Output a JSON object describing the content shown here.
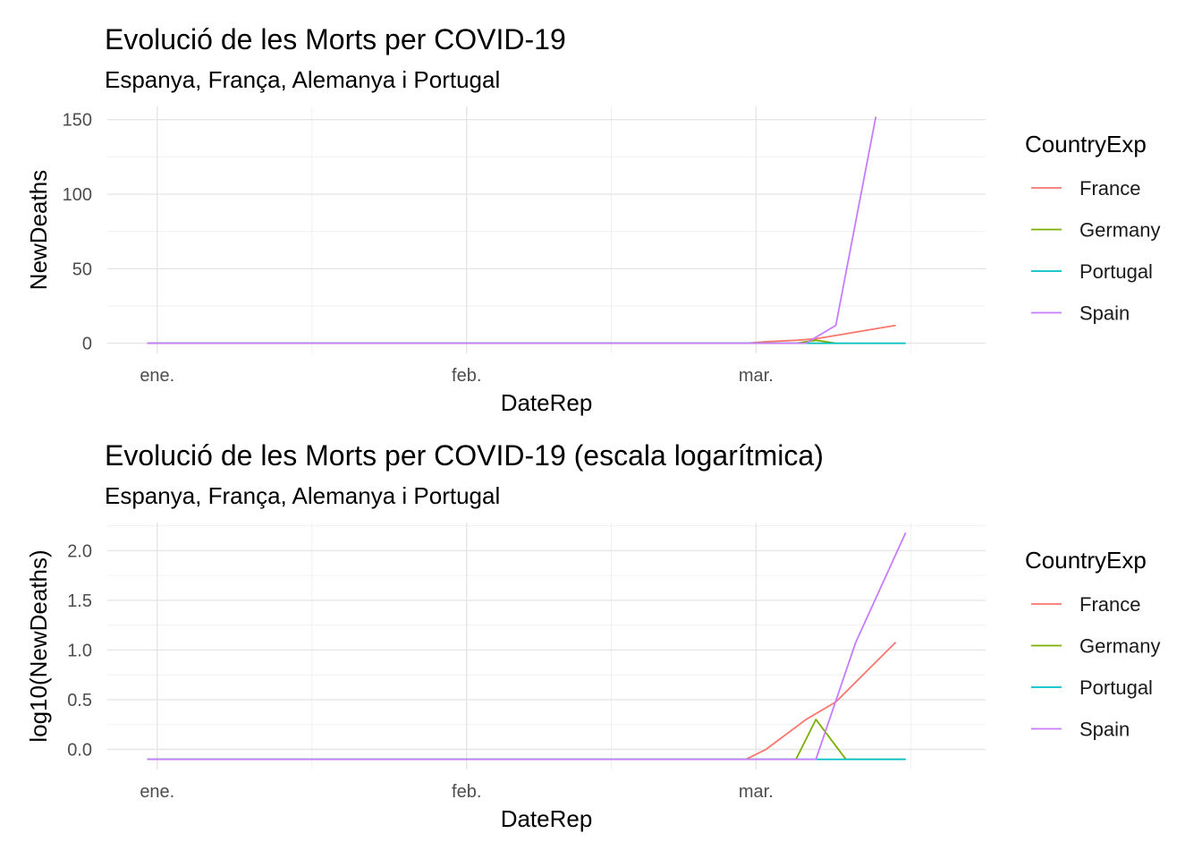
{
  "chart_data": [
    {
      "type": "line",
      "title": "Evolució de les Morts per COVID-19",
      "subtitle": "Espanya, França, Alemanya i Portugal",
      "xlabel": "DateRep",
      "ylabel": "NewDeaths",
      "x_ticks": [
        {
          "date": "2020-01-01",
          "label": "ene."
        },
        {
          "date": "2020-02-01",
          "label": "feb."
        },
        {
          "date": "2020-03-01",
          "label": "mar."
        }
      ],
      "xlim": [
        "2019-12-31",
        "2020-03-20"
      ],
      "ylim": [
        0,
        152
      ],
      "y_ticks": [
        0,
        50,
        100,
        150
      ],
      "grid": true,
      "legend_title": "CountryExp",
      "legend_position": "right",
      "series": [
        {
          "name": "France",
          "color": "#F8766D",
          "points": [
            [
              "2019-12-31",
              0
            ],
            [
              "2020-02-29",
              0
            ],
            [
              "2020-03-02",
              1
            ],
            [
              "2020-03-05",
              2
            ],
            [
              "2020-03-07",
              3
            ],
            [
              "2020-03-15",
              12
            ]
          ]
        },
        {
          "name": "Germany",
          "color": "#7CAE00",
          "points": [
            [
              "2019-12-31",
              0
            ],
            [
              "2020-03-05",
              0
            ],
            [
              "2020-03-07",
              2
            ],
            [
              "2020-03-09",
              0
            ]
          ]
        },
        {
          "name": "Portugal",
          "color": "#00BFC4",
          "points": [
            [
              "2019-12-31",
              0
            ],
            [
              "2020-03-16",
              0
            ]
          ]
        },
        {
          "name": "Spain",
          "color": "#C77CFF",
          "points": [
            [
              "2019-12-31",
              0
            ],
            [
              "2020-03-06",
              0
            ],
            [
              "2020-03-09",
              12
            ],
            [
              "2020-03-13",
              152
            ]
          ]
        }
      ]
    },
    {
      "type": "line",
      "title": "Evolució de les Morts per COVID-19 (escala logarítmica)",
      "subtitle": "Espanya, França, Alemanya i Portugal",
      "xlabel": "DateRep",
      "ylabel": "log10(NewDeaths)",
      "x_ticks": [
        {
          "date": "2020-01-01",
          "label": "ene."
        },
        {
          "date": "2020-02-01",
          "label": "feb."
        },
        {
          "date": "2020-03-01",
          "label": "mar."
        }
      ],
      "xlim": [
        "2019-12-31",
        "2020-03-20"
      ],
      "ylim": [
        -0.1,
        2.18
      ],
      "y_ticks": [
        0.0,
        0.5,
        1.0,
        1.5,
        2.0
      ],
      "y_tick_labels": [
        "0.0",
        "0.5",
        "1.0",
        "1.5",
        "2.0"
      ],
      "grid": true,
      "legend_title": "CountryExp",
      "legend_position": "right",
      "series": [
        {
          "name": "France",
          "color": "#F8766D",
          "points": [
            [
              "2019-12-31",
              -0.1
            ],
            [
              "2020-02-29",
              -0.1
            ],
            [
              "2020-03-02",
              0.0
            ],
            [
              "2020-03-06",
              0.3
            ],
            [
              "2020-03-09",
              0.477
            ],
            [
              "2020-03-15",
              1.079
            ]
          ]
        },
        {
          "name": "Germany",
          "color": "#7CAE00",
          "points": [
            [
              "2019-12-31",
              -0.1
            ],
            [
              "2020-03-05",
              -0.1
            ],
            [
              "2020-03-07",
              0.301
            ],
            [
              "2020-03-10",
              -0.1
            ],
            [
              "2020-03-16",
              -0.1
            ]
          ]
        },
        {
          "name": "Portugal",
          "color": "#00BFC4",
          "points": [
            [
              "2019-12-31",
              -0.1
            ],
            [
              "2020-03-16",
              -0.1
            ]
          ]
        },
        {
          "name": "Spain",
          "color": "#C77CFF",
          "points": [
            [
              "2019-12-31",
              -0.1
            ],
            [
              "2020-03-07",
              -0.1
            ],
            [
              "2020-03-11",
              1.079
            ],
            [
              "2020-03-16",
              2.182
            ]
          ]
        }
      ]
    }
  ]
}
